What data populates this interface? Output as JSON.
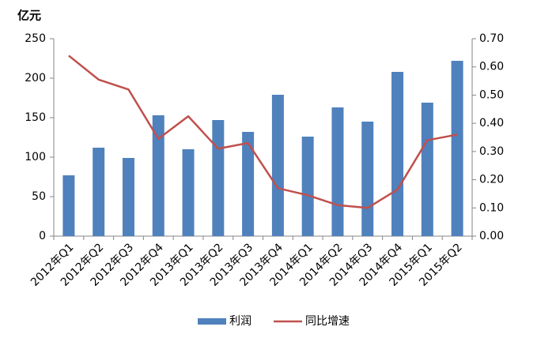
{
  "chart_data": {
    "type": "combo",
    "unit_label": "亿元",
    "categories": [
      "2012年Q1",
      "2012年Q2",
      "2012年Q3",
      "2012年Q4",
      "2013年Q1",
      "2013年Q2",
      "2013年Q3",
      "2013年Q4",
      "2014年Q1",
      "2014年Q2",
      "2014年Q3",
      "2014年Q4",
      "2015年Q1",
      "2015年Q2"
    ],
    "series": [
      {
        "name": "利润",
        "type": "bar",
        "color": "#4f81bd",
        "values": [
          77,
          112,
          99,
          153,
          110,
          147,
          132,
          179,
          126,
          163,
          145,
          208,
          169,
          222
        ]
      },
      {
        "name": "同比增速",
        "type": "line",
        "axis": "y2",
        "color": "#c0504d",
        "values": [
          0.64,
          0.555,
          0.52,
          0.345,
          0.425,
          0.31,
          0.33,
          0.17,
          0.145,
          0.11,
          0.1,
          0.165,
          0.34,
          0.36
        ]
      }
    ],
    "ylim": [
      0,
      250
    ],
    "yticks": [
      0,
      50,
      100,
      150,
      200,
      250
    ],
    "y2lim": [
      0,
      0.7
    ],
    "y2ticks": [
      {
        "value": 0,
        "label": "0.00"
      },
      {
        "value": 0.1,
        "label": "0.10"
      },
      {
        "value": 0.2,
        "label": "0.20"
      },
      {
        "value": 0.3,
        "label": "0.30"
      },
      {
        "value": 0.4,
        "label": "0.40"
      },
      {
        "value": 0.5,
        "label": "0.50"
      },
      {
        "value": 0.6,
        "label": "0.60"
      },
      {
        "value": 0.7,
        "label": "0.70"
      }
    ],
    "grid": false,
    "legend": "bottom"
  }
}
